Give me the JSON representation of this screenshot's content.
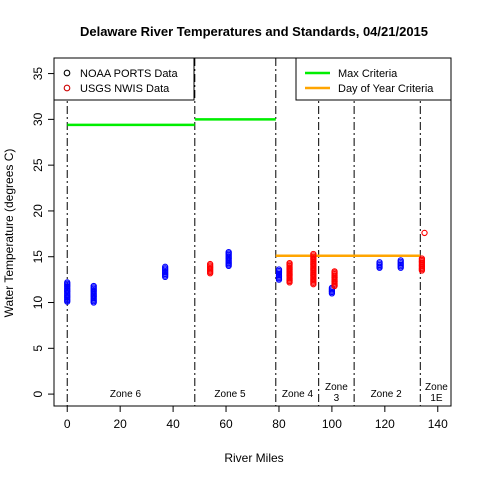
{
  "chart_data": {
    "type": "scatter",
    "title": "Delaware River Temperatures and Standards, 04/21/2015",
    "xlabel": "River Miles",
    "ylabel": "Water Temperature (degrees C)",
    "xlim": [
      -5,
      145
    ],
    "ylim": [
      -1.3,
      36.7
    ],
    "xticks": [
      0,
      20,
      40,
      60,
      80,
      100,
      120,
      140
    ],
    "yticks": [
      0,
      5,
      10,
      15,
      20,
      25,
      30,
      35
    ],
    "grid": false,
    "legends": [
      {
        "placement": "top-left",
        "entries": [
          {
            "label": "NOAA PORTS Data",
            "color": "#000000",
            "marker": "circle"
          },
          {
            "label": "USGS NWIS Data",
            "color": "#cc0000",
            "marker": "circle"
          }
        ]
      },
      {
        "placement": "top-right",
        "entries": [
          {
            "label": "Max Criteria",
            "color": "#00ee00",
            "marker": "line"
          },
          {
            "label": "Day of Year Criteria",
            "color": "#ffa500",
            "marker": "line"
          }
        ]
      }
    ],
    "zone_boundaries": [
      0,
      48.2,
      78.8,
      95.0,
      108.4,
      133.4
    ],
    "zones": [
      {
        "label": "Zone 6",
        "x": 22
      },
      {
        "label": "Zone 5",
        "x": 61.5
      },
      {
        "label": "Zone 4",
        "x": 87
      },
      {
        "label": "Zone\n3",
        "x": 101.7
      },
      {
        "label": "Zone 2",
        "x": 120.5
      },
      {
        "label": "Zone\n1E",
        "x": 139.5
      }
    ],
    "criteria_lines": [
      {
        "series": "Max Criteria",
        "x": [
          0,
          48.2
        ],
        "y": 29.4,
        "color": "#00ee00"
      },
      {
        "series": "Max Criteria",
        "x": [
          48.2,
          78.8
        ],
        "y": 30.0,
        "color": "#00ee00"
      },
      {
        "series": "Day of Year Criteria",
        "x": [
          78.8,
          133.4
        ],
        "y": 15.1,
        "color": "#ffa500"
      }
    ],
    "series": [
      {
        "name": "NOAA PORTS Data",
        "color": "#0000ff",
        "points": [
          {
            "x": 0,
            "ymin": 10.1,
            "ymax": 12.2
          },
          {
            "x": 10,
            "ymin": 10.0,
            "ymax": 11.8
          },
          {
            "x": 37,
            "ymin": 12.8,
            "ymax": 13.9
          },
          {
            "x": 61,
            "ymin": 14.0,
            "ymax": 15.5
          },
          {
            "x": 80,
            "ymin": 12.5,
            "ymax": 13.6
          },
          {
            "x": 100,
            "ymin": 11.0,
            "ymax": 11.6
          },
          {
            "x": 118,
            "ymin": 13.8,
            "ymax": 14.4
          },
          {
            "x": 126,
            "ymin": 13.8,
            "ymax": 14.6
          }
        ]
      },
      {
        "name": "USGS NWIS Data",
        "color": "#ff0000",
        "points": [
          {
            "x": 54,
            "ymin": 13.2,
            "ymax": 14.2
          },
          {
            "x": 84,
            "ymin": 12.2,
            "ymax": 14.3
          },
          {
            "x": 93,
            "ymin": 12.0,
            "ymax": 15.3
          },
          {
            "x": 101,
            "ymin": 11.8,
            "ymax": 13.4
          },
          {
            "x": 134,
            "ymin": 13.5,
            "ymax": 14.8
          }
        ]
      }
    ],
    "outliers": [
      {
        "x": 135,
        "y": 17.6,
        "color": "#ff0000"
      }
    ]
  }
}
